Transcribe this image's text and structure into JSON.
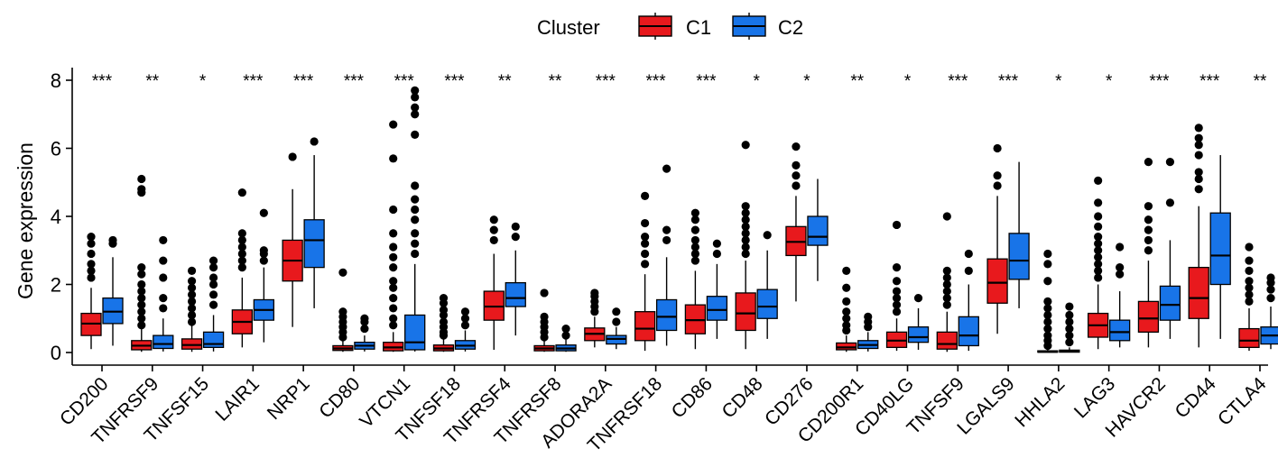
{
  "chart_data": {
    "type": "boxplot",
    "ylabel": "Gene expression",
    "xlabel": "",
    "ylim": [
      -0.4,
      8.1
    ],
    "yticks": [
      0,
      2,
      4,
      6,
      8
    ],
    "legend": {
      "title": "Cluster",
      "position": "top-center",
      "entries": [
        {
          "name": "C1",
          "color": "#e8191d"
        },
        {
          "name": "C2",
          "color": "#1874e8"
        }
      ]
    },
    "genes": [
      {
        "name": "CD200",
        "sig": "***",
        "c1": {
          "min": 0.1,
          "q1": 0.5,
          "med": 0.85,
          "q3": 1.15,
          "max": 1.9,
          "out": [
            2.2,
            2.4,
            2.6,
            2.9,
            3.2,
            3.4
          ]
        },
        "c2": {
          "min": 0.2,
          "q1": 0.85,
          "med": 1.2,
          "q3": 1.6,
          "max": 2.8,
          "out": [
            3.2,
            3.3
          ]
        }
      },
      {
        "name": "TNFRSF9",
        "sig": "**",
        "c1": {
          "min": 0.02,
          "q1": 0.08,
          "med": 0.2,
          "q3": 0.35,
          "max": 0.7,
          "out": [
            0.8,
            1.0,
            1.2,
            1.4,
            1.6,
            1.8,
            2.0,
            2.3,
            2.5,
            4.7,
            4.8,
            5.1
          ]
        },
        "c2": {
          "min": 0.03,
          "q1": 0.12,
          "med": 0.25,
          "q3": 0.5,
          "max": 1.0,
          "out": [
            1.3,
            1.6,
            2.2,
            2.7,
            3.3
          ]
        }
      },
      {
        "name": "TNFSF15",
        "sig": "*",
        "c1": {
          "min": 0.02,
          "q1": 0.1,
          "med": 0.22,
          "q3": 0.4,
          "max": 0.8,
          "out": [
            0.9,
            1.1,
            1.3,
            1.5,
            1.7,
            1.9,
            2.1,
            2.4
          ]
        },
        "c2": {
          "min": 0.03,
          "q1": 0.15,
          "med": 0.25,
          "q3": 0.6,
          "max": 1.1,
          "out": [
            1.4,
            1.7,
            2.0,
            2.2,
            2.5,
            2.7
          ]
        }
      },
      {
        "name": "LAIR1",
        "sig": "***",
        "c1": {
          "min": 0.15,
          "q1": 0.55,
          "med": 0.9,
          "q3": 1.25,
          "max": 2.2,
          "out": [
            2.5,
            2.7,
            2.9,
            3.1,
            3.3,
            3.5,
            4.7
          ]
        },
        "c2": {
          "min": 0.3,
          "q1": 0.95,
          "med": 1.25,
          "q3": 1.55,
          "max": 2.5,
          "out": [
            2.7,
            2.9,
            3.0,
            4.1
          ]
        }
      },
      {
        "name": "NRP1",
        "sig": "***",
        "c1": {
          "min": 0.75,
          "q1": 2.1,
          "med": 2.7,
          "q3": 3.3,
          "max": 4.8,
          "out": [
            5.75
          ]
        },
        "c2": {
          "min": 1.3,
          "q1": 2.5,
          "med": 3.3,
          "q3": 3.9,
          "max": 5.8,
          "out": [
            6.2
          ]
        }
      },
      {
        "name": "CD80",
        "sig": "***",
        "c1": {
          "min": 0.02,
          "q1": 0.06,
          "med": 0.12,
          "q3": 0.2,
          "max": 0.35,
          "out": [
            0.45,
            0.6,
            0.75,
            0.9,
            1.05,
            1.2,
            2.35
          ]
        },
        "c2": {
          "min": 0.03,
          "q1": 0.1,
          "med": 0.2,
          "q3": 0.3,
          "max": 0.5,
          "out": [
            0.7,
            0.9,
            1.0
          ]
        }
      },
      {
        "name": "VTCN1",
        "sig": "***",
        "c1": {
          "min": 0.02,
          "q1": 0.05,
          "med": 0.15,
          "q3": 0.3,
          "max": 0.6,
          "out": [
            0.8,
            1.0,
            1.3,
            1.6,
            1.9,
            2.1,
            2.5,
            2.8,
            3.1,
            3.5,
            4.2,
            5.7,
            6.7
          ]
        },
        "c2": {
          "min": 0.03,
          "q1": 0.08,
          "med": 0.3,
          "q3": 1.1,
          "max": 2.6,
          "out": [
            2.9,
            3.2,
            3.5,
            3.9,
            4.2,
            4.5,
            4.9,
            6.4,
            7.0,
            7.2,
            7.5,
            7.7
          ]
        }
      },
      {
        "name": "TNFSF18",
        "sig": "***",
        "c1": {
          "min": 0.02,
          "q1": 0.05,
          "med": 0.12,
          "q3": 0.22,
          "max": 0.4,
          "out": [
            0.5,
            0.6,
            0.75,
            0.9,
            1.1,
            1.25,
            1.45,
            1.6
          ]
        },
        "c2": {
          "min": 0.03,
          "q1": 0.1,
          "med": 0.2,
          "q3": 0.35,
          "max": 0.65,
          "out": [
            0.8,
            1.0,
            1.2
          ]
        }
      },
      {
        "name": "TNFRSF4",
        "sig": "**",
        "c1": {
          "min": 0.08,
          "q1": 0.95,
          "med": 1.35,
          "q3": 1.8,
          "max": 2.9,
          "out": [
            3.3,
            3.6,
            3.9
          ]
        },
        "c2": {
          "min": 0.5,
          "q1": 1.35,
          "med": 1.6,
          "q3": 2.05,
          "max": 3.0,
          "out": [
            3.4,
            3.7
          ]
        }
      },
      {
        "name": "TNFRSF8",
        "sig": "**",
        "c1": {
          "min": 0.02,
          "q1": 0.05,
          "med": 0.12,
          "q3": 0.2,
          "max": 0.35,
          "out": [
            0.45,
            0.6,
            0.75,
            0.9,
            1.05,
            1.75
          ]
        },
        "c2": {
          "min": 0.02,
          "q1": 0.05,
          "med": 0.12,
          "q3": 0.22,
          "max": 0.4,
          "out": [
            0.5,
            0.7
          ]
        }
      },
      {
        "name": "ADORA2A",
        "sig": "***",
        "c1": {
          "min": 0.15,
          "q1": 0.35,
          "med": 0.55,
          "q3": 0.72,
          "max": 1.05,
          "out": [
            1.2,
            1.35,
            1.5,
            1.65,
            1.75
          ]
        },
        "c2": {
          "min": 0.1,
          "q1": 0.25,
          "med": 0.4,
          "q3": 0.5,
          "max": 0.75,
          "out": [
            0.9,
            1.2
          ]
        }
      },
      {
        "name": "TNFRSF18",
        "sig": "***",
        "c1": {
          "min": 0.05,
          "q1": 0.35,
          "med": 0.7,
          "q3": 1.2,
          "max": 2.3,
          "out": [
            2.6,
            2.9,
            3.2,
            3.4,
            3.8,
            4.6
          ]
        },
        "c2": {
          "min": 0.2,
          "q1": 0.65,
          "med": 1.05,
          "q3": 1.55,
          "max": 2.8,
          "out": [
            3.3,
            3.6,
            5.4
          ]
        }
      },
      {
        "name": "CD86",
        "sig": "***",
        "c1": {
          "min": 0.1,
          "q1": 0.55,
          "med": 0.95,
          "q3": 1.4,
          "max": 2.4,
          "out": [
            2.7,
            2.9,
            3.1,
            3.3,
            3.6,
            3.9,
            4.1
          ]
        },
        "c2": {
          "min": 0.4,
          "q1": 0.95,
          "med": 1.25,
          "q3": 1.65,
          "max": 2.6,
          "out": [
            2.9,
            3.2
          ]
        }
      },
      {
        "name": "CD48",
        "sig": "*",
        "c1": {
          "min": 0.1,
          "q1": 0.65,
          "med": 1.15,
          "q3": 1.75,
          "max": 2.7,
          "out": [
            2.9,
            3.1,
            3.3,
            3.5,
            3.7,
            3.9,
            4.1,
            4.3,
            6.1
          ]
        },
        "c2": {
          "min": 0.4,
          "q1": 1.0,
          "med": 1.35,
          "q3": 1.85,
          "max": 3.0,
          "out": [
            3.45
          ]
        }
      },
      {
        "name": "CD276",
        "sig": "*",
        "c1": {
          "min": 1.5,
          "q1": 2.85,
          "med": 3.25,
          "q3": 3.7,
          "max": 4.6,
          "out": [
            4.9,
            5.2,
            5.5,
            6.05
          ]
        },
        "c2": {
          "min": 2.1,
          "q1": 3.15,
          "med": 3.4,
          "q3": 4.0,
          "max": 5.1,
          "out": []
        }
      },
      {
        "name": "CD200R1",
        "sig": "**",
        "c1": {
          "min": 0.02,
          "q1": 0.08,
          "med": 0.15,
          "q3": 0.28,
          "max": 0.5,
          "out": [
            0.65,
            0.8,
            1.0,
            1.2,
            1.5,
            1.9,
            2.4
          ]
        },
        "c2": {
          "min": 0.03,
          "q1": 0.12,
          "med": 0.22,
          "q3": 0.35,
          "max": 0.6,
          "out": [
            0.75,
            0.9,
            1.05
          ]
        }
      },
      {
        "name": "CD40LG",
        "sig": "*",
        "c1": {
          "min": 0.05,
          "q1": 0.15,
          "med": 0.35,
          "q3": 0.6,
          "max": 1.0,
          "out": [
            1.2,
            1.4,
            1.6,
            1.8,
            2.1,
            2.5,
            3.75
          ]
        },
        "c2": {
          "min": 0.08,
          "q1": 0.3,
          "med": 0.45,
          "q3": 0.75,
          "max": 1.3,
          "out": [
            1.6
          ]
        }
      },
      {
        "name": "TNFSF9",
        "sig": "***",
        "c1": {
          "min": 0.02,
          "q1": 0.1,
          "med": 0.25,
          "q3": 0.6,
          "max": 1.2,
          "out": [
            1.4,
            1.6,
            1.8,
            2.0,
            2.2,
            2.4,
            4.0
          ]
        },
        "c2": {
          "min": 0.05,
          "q1": 0.2,
          "med": 0.5,
          "q3": 1.05,
          "max": 2.0,
          "out": [
            2.4,
            2.9
          ]
        }
      },
      {
        "name": "LGALS9",
        "sig": "***",
        "c1": {
          "min": 0.55,
          "q1": 1.45,
          "med": 2.05,
          "q3": 2.75,
          "max": 4.6,
          "out": [
            4.9,
            5.2,
            6.0
          ]
        },
        "c2": {
          "min": 1.3,
          "q1": 2.15,
          "med": 2.7,
          "q3": 3.5,
          "max": 5.6,
          "out": []
        }
      },
      {
        "name": "HHLA2",
        "sig": "*",
        "c1": {
          "min": 0.0,
          "q1": 0.01,
          "med": 0.02,
          "q3": 0.05,
          "max": 0.1,
          "out": [
            0.2,
            0.35,
            0.5,
            0.7,
            0.9,
            1.1,
            1.3,
            1.5,
            2.1,
            2.6,
            2.9
          ]
        },
        "c2": {
          "min": 0.0,
          "q1": 0.01,
          "med": 0.03,
          "q3": 0.07,
          "max": 0.15,
          "out": [
            0.3,
            0.5,
            0.7,
            0.9,
            1.1,
            1.35
          ]
        }
      },
      {
        "name": "LAG3",
        "sig": "*",
        "c1": {
          "min": 0.1,
          "q1": 0.45,
          "med": 0.8,
          "q3": 1.15,
          "max": 2.0,
          "out": [
            2.2,
            2.4,
            2.6,
            2.8,
            3.0,
            3.2,
            3.4,
            3.7,
            4.0,
            4.4,
            5.05
          ]
        },
        "c2": {
          "min": 0.15,
          "q1": 0.35,
          "med": 0.6,
          "q3": 0.95,
          "max": 1.8,
          "out": [
            2.3,
            2.5,
            3.1
          ]
        }
      },
      {
        "name": "HAVCR2",
        "sig": "***",
        "c1": {
          "min": 0.15,
          "q1": 0.6,
          "med": 1.0,
          "q3": 1.5,
          "max": 2.7,
          "out": [
            3.0,
            3.3,
            3.6,
            3.9,
            4.3,
            5.6
          ]
        },
        "c2": {
          "min": 0.4,
          "q1": 0.95,
          "med": 1.4,
          "q3": 1.95,
          "max": 3.3,
          "out": [
            4.4,
            5.6
          ]
        }
      },
      {
        "name": "CD44",
        "sig": "***",
        "c1": {
          "min": 0.15,
          "q1": 1.0,
          "med": 1.6,
          "q3": 2.5,
          "max": 4.3,
          "out": [
            4.8,
            5.1,
            5.3,
            5.8,
            6.1,
            6.3,
            6.6
          ]
        },
        "c2": {
          "min": 0.4,
          "q1": 2.0,
          "med": 2.85,
          "q3": 4.1,
          "max": 5.8,
          "out": []
        }
      },
      {
        "name": "CTLA4",
        "sig": "**",
        "c1": {
          "min": 0.05,
          "q1": 0.15,
          "med": 0.35,
          "q3": 0.7,
          "max": 1.3,
          "out": [
            1.5,
            1.7,
            1.9,
            2.1,
            2.4,
            2.7,
            3.1
          ]
        },
        "c2": {
          "min": 0.1,
          "q1": 0.25,
          "med": 0.5,
          "q3": 0.75,
          "max": 1.35,
          "out": [
            1.6,
            1.85,
            2.05,
            2.2
          ]
        }
      }
    ]
  }
}
